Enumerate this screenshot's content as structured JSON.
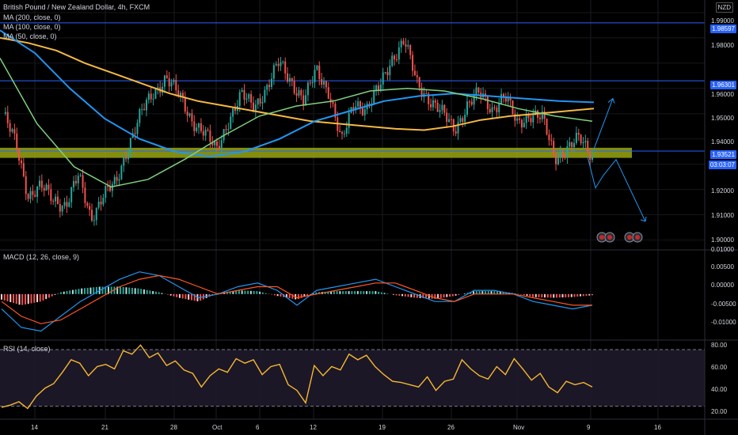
{
  "window": {
    "symbol_title": "British Pound / New Zealand Dollar, 4h, FXCM",
    "currency_badge": "NZD",
    "countdown": "03:03:07"
  },
  "indicators": {
    "ma200": "MA (200, close, 0)",
    "ma100": "MA (100, close, 0)",
    "ma50": "MA (50, close, 0)",
    "macd": "MACD (12, 26, close, 9)",
    "rsi": "RSI (14, close)"
  },
  "price_scale": [
    "1.99000",
    "1.98000",
    "1.96000",
    "1.95000",
    "1.94000",
    "1.92000",
    "1.91000",
    "1.90000"
  ],
  "price_tags": {
    "level_top": "1.98597",
    "level_mid": "1.96301",
    "last": "1.93521"
  },
  "macd_scale": [
    "0.01000",
    "0.00500",
    "0.00000",
    "-0.00500",
    "-0.01000"
  ],
  "rsi_scale": [
    "80.00",
    "60.00",
    "40.00",
    "20.00"
  ],
  "x_labels": [
    "14",
    "21",
    "28",
    "Oct",
    "6",
    "12",
    "19",
    "26",
    "Nov",
    "9",
    "16"
  ],
  "colors": {
    "bull": "#26a69a",
    "bear": "#ef5350",
    "ma200": "#f5b942",
    "ma100": "#2196f3",
    "ma50": "#7fd17f",
    "hline": "#2962ff",
    "zone": "#9aa610",
    "rsi": "#f7b731",
    "macd_line": "#2196f3",
    "signal": "#ff5722",
    "projection": "#2196f3",
    "event_icons": "flags-icon"
  },
  "chart_data": [
    {
      "type": "candlestick",
      "title": "British Pound / New Zealand Dollar, 4h, FXCM",
      "ylim": [
        1.897,
        1.995
      ],
      "x": [
        "14",
        "21",
        "28",
        "Oct",
        "6",
        "12",
        "19",
        "26",
        "Nov",
        "9",
        "16"
      ],
      "horizontal_levels": [
        1.98597,
        1.96301,
        1.93521
      ],
      "support_zone": [
        1.9325,
        1.9365
      ],
      "close_path": [
        1.95,
        1.938,
        1.918,
        1.921,
        1.916,
        1.914,
        1.925,
        1.909,
        1.918,
        1.922,
        1.938,
        1.95,
        1.958,
        1.965,
        1.957,
        1.948,
        1.943,
        1.935,
        1.948,
        1.957,
        1.953,
        1.96,
        1.97,
        1.963,
        1.955,
        1.967,
        1.959,
        1.938,
        1.955,
        1.952,
        1.96,
        1.972,
        1.979,
        1.962,
        1.956,
        1.95,
        1.944,
        1.953,
        1.958,
        1.952,
        1.957,
        1.946,
        1.95,
        1.948,
        1.933,
        1.936,
        1.94,
        1.934
      ],
      "ma200": [
        1.98,
        1.978,
        1.975,
        1.97,
        1.966,
        1.962,
        1.958,
        1.955,
        1.953,
        1.951,
        1.949,
        1.947,
        1.946,
        1.945,
        1.944,
        1.9435,
        1.945,
        1.9475,
        1.949,
        1.95,
        1.951,
        1.952
      ],
      "ma100": [
        1.983,
        1.974,
        1.96,
        1.948,
        1.94,
        1.935,
        1.933,
        1.935,
        1.94,
        1.947,
        1.951,
        1.955,
        1.957,
        1.958,
        1.957,
        1.956,
        1.955,
        1.9545
      ],
      "ma50": [
        1.972,
        1.946,
        1.929,
        1.921,
        1.924,
        1.932,
        1.941,
        1.949,
        1.953,
        1.955,
        1.959,
        1.96,
        1.959,
        1.956,
        1.952,
        1.949,
        1.947
      ],
      "projection": [
        [
          1.936,
          1.956
        ],
        [
          1.933,
          1.93,
          1.935,
          1.913
        ]
      ]
    },
    {
      "type": "bar",
      "title": "MACD (12, 26, close, 9)",
      "ylim": [
        -0.012,
        0.0115
      ],
      "series": [
        {
          "values": [
            -0.004,
            -0.009,
            -0.01,
            -0.006,
            -0.002,
            0.001,
            0.004,
            0.006,
            0.005,
            0.002,
            -0.001,
            0.0,
            0.002,
            0.003,
            0.001,
            -0.003,
            0.001,
            0.002,
            0.003,
            0.004,
            0.002,
            0.0,
            -0.002,
            -0.002,
            0.001,
            0.001,
            0.0,
            -0.002,
            -0.003,
            -0.004,
            -0.003
          ]
        },
        {
          "values": [
            -0.002,
            -0.006,
            -0.008,
            -0.007,
            -0.004,
            -0.001,
            0.002,
            0.004,
            0.005,
            0.004,
            0.002,
            0.0,
            0.001,
            0.002,
            0.002,
            -0.001,
            0.0,
            0.001,
            0.002,
            0.003,
            0.003,
            0.001,
            -0.001,
            -0.002,
            0.0,
            0.0,
            0.0,
            -0.001,
            -0.002,
            -0.003,
            -0.003
          ]
        }
      ],
      "histogram": [
        -0.0015,
        -0.003,
        -0.002,
        0.0005,
        0.0015,
        0.002,
        0.002,
        0.0015,
        0.0005,
        -0.001,
        -0.002,
        0.0003,
        0.001,
        0.0008,
        -0.0005,
        -0.0015,
        0.0005,
        0.0008,
        0.0008,
        0.0008,
        -0.0003,
        -0.001,
        -0.0013,
        -0.0005,
        0.0008,
        0.0008,
        0.0003,
        -0.0008,
        -0.001,
        -0.0008,
        -0.0003
      ]
    },
    {
      "type": "line",
      "title": "RSI (14, close)",
      "ylim": [
        15,
        82
      ],
      "bands": [
        25,
        75
      ],
      "values": [
        24,
        26,
        29,
        23,
        34,
        41,
        45,
        55,
        66,
        63,
        52,
        60,
        62,
        58,
        74,
        71,
        79,
        68,
        72,
        61,
        65,
        57,
        54,
        42,
        52,
        58,
        55,
        67,
        63,
        66,
        53,
        60,
        62,
        44,
        39,
        28,
        61,
        52,
        60,
        57,
        71,
        66,
        70,
        60,
        53,
        47,
        46,
        44,
        42,
        51,
        39,
        47,
        49,
        66,
        58,
        52,
        49,
        60,
        53,
        67,
        58,
        48,
        54,
        42,
        37,
        47,
        44,
        46,
        42
      ]
    }
  ]
}
